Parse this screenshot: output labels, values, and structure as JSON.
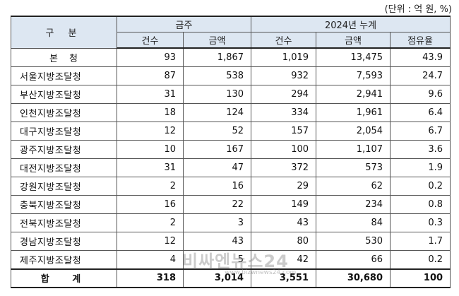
{
  "unit_note": "(단위 : 억 원, %)",
  "headers": {
    "category": "구 분",
    "group_current": "금주",
    "group_cumulative": "2024년 누계",
    "cnt": "건수",
    "amt": "금액",
    "cum_cnt": "건수",
    "cum_amt": "금액",
    "share": "점유율"
  },
  "rows": [
    {
      "name": "본 청",
      "cnt": "93",
      "amt": "1,867",
      "cum_cnt": "1,019",
      "cum_amt": "13,475",
      "share": "43.9"
    },
    {
      "name": "서울지방조달청",
      "cnt": "87",
      "amt": "538",
      "cum_cnt": "932",
      "cum_amt": "7,593",
      "share": "24.7"
    },
    {
      "name": "부산지방조달청",
      "cnt": "31",
      "amt": "130",
      "cum_cnt": "294",
      "cum_amt": "2,941",
      "share": "9.6"
    },
    {
      "name": "인천지방조달청",
      "cnt": "18",
      "amt": "124",
      "cum_cnt": "334",
      "cum_amt": "1,961",
      "share": "6.4"
    },
    {
      "name": "대구지방조달청",
      "cnt": "12",
      "amt": "52",
      "cum_cnt": "157",
      "cum_amt": "2,054",
      "share": "6.7"
    },
    {
      "name": "광주지방조달청",
      "cnt": "10",
      "amt": "167",
      "cum_cnt": "100",
      "cum_amt": "1,107",
      "share": "3.6"
    },
    {
      "name": "대전지방조달청",
      "cnt": "31",
      "amt": "47",
      "cum_cnt": "372",
      "cum_amt": "573",
      "share": "1.9"
    },
    {
      "name": "강원지방조달청",
      "cnt": "2",
      "amt": "16",
      "cum_cnt": "29",
      "cum_amt": "62",
      "share": "0.2"
    },
    {
      "name": "충북지방조달청",
      "cnt": "16",
      "amt": "22",
      "cum_cnt": "149",
      "cum_amt": "234",
      "share": "0.8"
    },
    {
      "name": "전북지방조달청",
      "cnt": "2",
      "amt": "3",
      "cum_cnt": "43",
      "cum_amt": "84",
      "share": "0.3"
    },
    {
      "name": "경남지방조달청",
      "cnt": "12",
      "amt": "43",
      "cum_cnt": "80",
      "cum_amt": "530",
      "share": "1.7"
    },
    {
      "name": "제주지방조달청",
      "cnt": "4",
      "amt": "5",
      "cum_cnt": "42",
      "cum_amt": "66",
      "share": "0.2"
    }
  ],
  "total": {
    "name": "합 계",
    "cnt": "318",
    "amt": "3,014",
    "cum_cnt": "3,551",
    "cum_amt": "30,680",
    "share": "100"
  },
  "watermark": {
    "text": "비싸엔뉴스24",
    "url": "www.bizwnews24.com"
  }
}
